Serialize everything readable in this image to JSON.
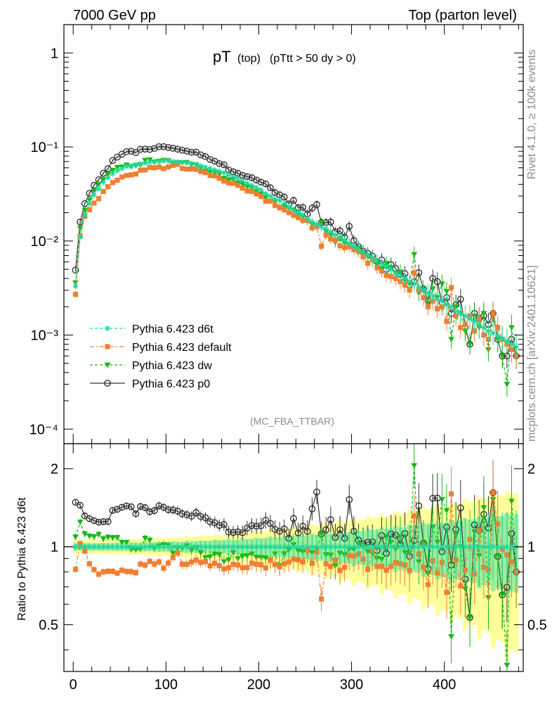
{
  "header": {
    "left": "7000 GeV pp",
    "right": "Top (parton level)"
  },
  "side_text": {
    "rivet": "Rivet 4.1.0, ≥ 100k events",
    "mcplots": "mcplots.cern.ch [arXiv:2401.10621]"
  },
  "chart_data": [
    {
      "type": "line",
      "panel": "main",
      "title_main": "pT",
      "title_sub": "(top)",
      "title_cut": "(pTtt > 50 dy > 0)",
      "analysis": "(MC_FBA_TTBAR)",
      "xlabel": "",
      "ylabel": "",
      "yscale": "log",
      "xlim": [
        -10,
        485
      ],
      "ylim": [
        7e-05,
        2.0
      ],
      "yticks": [
        {
          "value": 1,
          "label": "1"
        },
        {
          "value": 0.1,
          "label": "10⁻¹"
        },
        {
          "value": 0.01,
          "label": "10⁻²"
        },
        {
          "value": 0.001,
          "label": "10⁻³"
        },
        {
          "value": 0.0001,
          "label": "10⁻⁴"
        }
      ],
      "x": [
        2.5,
        7.5,
        12.5,
        17.5,
        22.5,
        27.5,
        32.5,
        37.5,
        42.5,
        47.5,
        52.5,
        57.5,
        62.5,
        67.5,
        72.5,
        77.5,
        82.5,
        87.5,
        92.5,
        97.5,
        102.5,
        107.5,
        112.5,
        117.5,
        122.5,
        127.5,
        132.5,
        137.5,
        142.5,
        147.5,
        152.5,
        157.5,
        162.5,
        167.5,
        172.5,
        177.5,
        182.5,
        187.5,
        192.5,
        197.5,
        202.5,
        207.5,
        212.5,
        217.5,
        222.5,
        227.5,
        232.5,
        237.5,
        242.5,
        247.5,
        252.5,
        257.5,
        262.5,
        267.5,
        272.5,
        277.5,
        282.5,
        287.5,
        292.5,
        297.5,
        302.5,
        307.5,
        312.5,
        317.5,
        322.5,
        327.5,
        332.5,
        337.5,
        342.5,
        347.5,
        352.5,
        357.5,
        362.5,
        367.5,
        372.5,
        377.5,
        382.5,
        387.5,
        392.5,
        397.5,
        402.5,
        407.5,
        412.5,
        417.5,
        422.5,
        427.5,
        432.5,
        437.5,
        442.5,
        447.5,
        452.5,
        457.5,
        462.5,
        467.5,
        472.5,
        477.5
      ],
      "series": [
        {
          "name": "Pythia 6.423 d6t",
          "color": "#1ed9a0",
          "marker": "star",
          "dash": "4,3",
          "values": [
            0.0033,
            0.011,
            0.019,
            0.025,
            0.031,
            0.036,
            0.042,
            0.047,
            0.052,
            0.056,
            0.059,
            0.062,
            0.063,
            0.065,
            0.066,
            0.067,
            0.069,
            0.07,
            0.07,
            0.071,
            0.071,
            0.07,
            0.069,
            0.069,
            0.068,
            0.067,
            0.065,
            0.063,
            0.061,
            0.059,
            0.057,
            0.055,
            0.053,
            0.05,
            0.048,
            0.046,
            0.044,
            0.041,
            0.039,
            0.037,
            0.035,
            0.032,
            0.03,
            0.028,
            0.027,
            0.025,
            0.023,
            0.021,
            0.02,
            0.019,
            0.017,
            0.016,
            0.015,
            0.014,
            0.0135,
            0.0125,
            0.0115,
            0.011,
            0.0102,
            0.0094,
            0.0088,
            0.0082,
            0.0076,
            0.0071,
            0.0066,
            0.0062,
            0.0057,
            0.0053,
            0.005,
            0.0046,
            0.0043,
            0.004,
            0.0037,
            0.0035,
            0.0032,
            0.003,
            0.0028,
            0.0026,
            0.0024,
            0.0023,
            0.0021,
            0.002,
            0.0018,
            0.0017,
            0.0016,
            0.0015,
            0.0014,
            0.0013,
            0.0012,
            0.0011,
            0.00105,
            0.00098,
            0.00092,
            0.00086,
            0.0008,
            0.00075
          ]
        },
        {
          "name": "Pythia 6.423 default",
          "color": "#f07f31",
          "marker": "square",
          "dash": "6,3,2,3",
          "values": [
            0.0027,
            0.0113,
            0.0183,
            0.0215,
            0.0253,
            0.0282,
            0.0336,
            0.0378,
            0.0418,
            0.0443,
            0.0479,
            0.0498,
            0.0505,
            0.0516,
            0.0566,
            0.0569,
            0.0606,
            0.0601,
            0.0612,
            0.0587,
            0.0614,
            0.0636,
            0.0654,
            0.0591,
            0.0582,
            0.0585,
            0.0578,
            0.0548,
            0.0535,
            0.0498,
            0.0492,
            0.0465,
            0.0435,
            0.0415,
            0.0411,
            0.0391,
            0.0365,
            0.0341,
            0.0337,
            0.0317,
            0.0298,
            0.0265,
            0.0266,
            0.0239,
            0.0226,
            0.0215,
            0.0201,
            0.0188,
            0.0178,
            0.0166,
            0.0165,
            0.0138,
            0.0143,
            0.0088,
            0.0116,
            0.0105,
            0.0102,
            0.0089,
            0.0085,
            0.0087,
            0.0081,
            0.0077,
            0.0068,
            0.0058,
            0.0064,
            0.0052,
            0.0048,
            0.0043,
            0.0042,
            0.004,
            0.0037,
            0.0034,
            0.003,
            0.0046,
            0.003,
            0.0025,
            0.002,
            0.0023,
            0.0019,
            0.002,
            0.0014,
            0.0032,
            0.0016,
            0.0012,
            0.0013,
            0.0016,
            0.0011,
            0.0015,
            0.001,
            0.0009,
            0.0017,
            0.0012,
            0.0009,
            0.0008,
            0.0007,
            0.0006
          ]
        },
        {
          "name": "Pythia 6.423 dw",
          "color": "#16b816",
          "marker": "triangle-down",
          "dash": "4,3",
          "values": [
            0.0036,
            0.0137,
            0.0213,
            0.0275,
            0.0339,
            0.0402,
            0.0451,
            0.0512,
            0.0564,
            0.0608,
            0.0614,
            0.0644,
            0.0617,
            0.0634,
            0.0647,
            0.0723,
            0.0732,
            0.069,
            0.0705,
            0.0723,
            0.0718,
            0.066,
            0.0683,
            0.0681,
            0.0686,
            0.065,
            0.0644,
            0.0599,
            0.0554,
            0.054,
            0.0535,
            0.0513,
            0.0464,
            0.0445,
            0.0456,
            0.0414,
            0.0405,
            0.0379,
            0.0366,
            0.0337,
            0.0318,
            0.029,
            0.0267,
            0.0263,
            0.0228,
            0.0235,
            0.0224,
            0.0214,
            0.0193,
            0.0182,
            0.0163,
            0.0152,
            0.0147,
            0.0157,
            0.0126,
            0.0116,
            0.0097,
            0.0104,
            0.0095,
            0.0092,
            0.0086,
            0.0084,
            0.0076,
            0.0068,
            0.0062,
            0.0056,
            0.0051,
            0.0058,
            0.0052,
            0.0045,
            0.0047,
            0.0038,
            0.0035,
            0.0072,
            0.0028,
            0.0031,
            0.0022,
            0.0031,
            0.0025,
            0.0035,
            0.0029,
            0.0009,
            0.002,
            0.0017,
            0.0011,
            0.0008,
            0.0016,
            0.0012,
            0.0017,
            0.0007,
            0.0016,
            0.0009,
            0.0006,
            0.0003,
            0.0012,
            0.0006
          ]
        },
        {
          "name": "Pythia 6.423 p0",
          "color": "#333333",
          "marker": "circle",
          "dash": "",
          "values": [
            0.0049,
            0.0159,
            0.025,
            0.0321,
            0.0391,
            0.0448,
            0.0525,
            0.0588,
            0.0718,
            0.0781,
            0.0838,
            0.0891,
            0.0899,
            0.0872,
            0.0944,
            0.0949,
            0.0942,
            0.0965,
            0.1007,
            0.1008,
            0.0987,
            0.0971,
            0.0947,
            0.0925,
            0.0904,
            0.0879,
            0.0881,
            0.0824,
            0.079,
            0.0737,
            0.0706,
            0.0665,
            0.0646,
            0.057,
            0.0545,
            0.0525,
            0.0499,
            0.0484,
            0.0471,
            0.0444,
            0.0422,
            0.0405,
            0.0369,
            0.0327,
            0.031,
            0.0293,
            0.0248,
            0.027,
            0.0226,
            0.0228,
            0.0195,
            0.0224,
            0.0244,
            0.0157,
            0.0157,
            0.0159,
            0.0125,
            0.0128,
            0.011,
            0.0143,
            0.0101,
            0.0087,
            0.0078,
            0.0074,
            0.0069,
            0.006,
            0.0063,
            0.005,
            0.0056,
            0.0051,
            0.0044,
            0.0045,
            0.0034,
            0.0037,
            0.0046,
            0.0031,
            0.0023,
            0.004,
            0.0037,
            0.0022,
            0.0025,
            0.0017,
            0.0021,
            0.0024,
            0.0012,
            0.0008,
            0.0017,
            0.0015,
            0.0016,
            0.0013,
            0.0017,
            0.0009,
            0.0006,
            0.0006,
            0.0009,
            0.0006
          ]
        }
      ]
    },
    {
      "type": "line",
      "panel": "ratio",
      "ylabel": "Ratio to Pythia 6.423 d6t",
      "yscale": "log",
      "xlim": [
        -10,
        485
      ],
      "ylim": [
        0.33,
        2.5
      ],
      "xticks": [
        0,
        100,
        200,
        300,
        400
      ],
      "yticks": [
        {
          "value": 0.5,
          "label": "0.5"
        },
        {
          "value": 1,
          "label": "1"
        },
        {
          "value": 2,
          "label": "2"
        }
      ],
      "reference": 1,
      "band_reference": "Pythia 6.423 d6t"
    }
  ]
}
